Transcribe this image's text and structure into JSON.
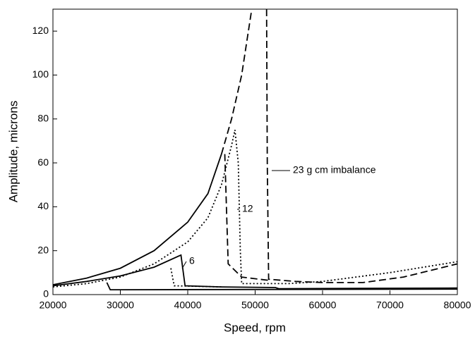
{
  "chart_data": {
    "type": "line",
    "x_label": "Speed, rpm",
    "y_label": "Amplitude, microns",
    "xlim": [
      20000,
      80000
    ],
    "xticks": [
      20000,
      30000,
      40000,
      50000,
      60000,
      70000,
      80000
    ],
    "ylim": [
      0,
      130
    ],
    "yticks": [
      0,
      20,
      40,
      60,
      80,
      100,
      120
    ],
    "series": [
      {
        "color": "#000000",
        "dash": "solid",
        "x": [
          20000,
          25000,
          30000,
          35000,
          39000,
          39600,
          45000,
          53000,
          53500,
          80000,
          null,
          80000,
          30000,
          28500,
          28000,
          null,
          20000,
          25000,
          30000,
          35000,
          40000,
          43000,
          45000
        ],
        "values": [
          4,
          6,
          8.5,
          12.5,
          18,
          4,
          3.5,
          3.2,
          2.7,
          3,
          null,
          2.5,
          2.2,
          2.2,
          5.5,
          null,
          4.5,
          7.5,
          12,
          20,
          33,
          46,
          64
        ]
      },
      {
        "color": "#000000",
        "dash": "dotted",
        "x": [
          20000,
          25000,
          30000,
          35000,
          40000,
          43000,
          45000,
          46500,
          47000,
          47500,
          47800,
          48000,
          55000,
          60000,
          70000,
          80000,
          null,
          37500,
          37800,
          38000,
          45000
        ],
        "values": [
          3.5,
          5,
          8,
          14,
          24,
          35,
          50,
          68,
          75,
          60,
          20,
          5,
          5,
          6,
          10,
          15,
          null,
          12,
          7,
          4,
          3.5
        ]
      },
      {
        "color": "#000000",
        "dash": "dashed",
        "x": [
          45000,
          46500,
          48000,
          49500,
          null,
          51700,
          51800,
          52000,
          56000,
          60000,
          66000,
          72000,
          80000,
          null,
          45500,
          46000,
          48000,
          52000
        ],
        "values": [
          64,
          80,
          100,
          130,
          null,
          130,
          60,
          7,
          6,
          5.5,
          5.5,
          8,
          14,
          null,
          64,
          14,
          8,
          6.5
        ]
      }
    ],
    "annotations": [
      "6",
      "12",
      "23 g cm imbalance"
    ]
  }
}
